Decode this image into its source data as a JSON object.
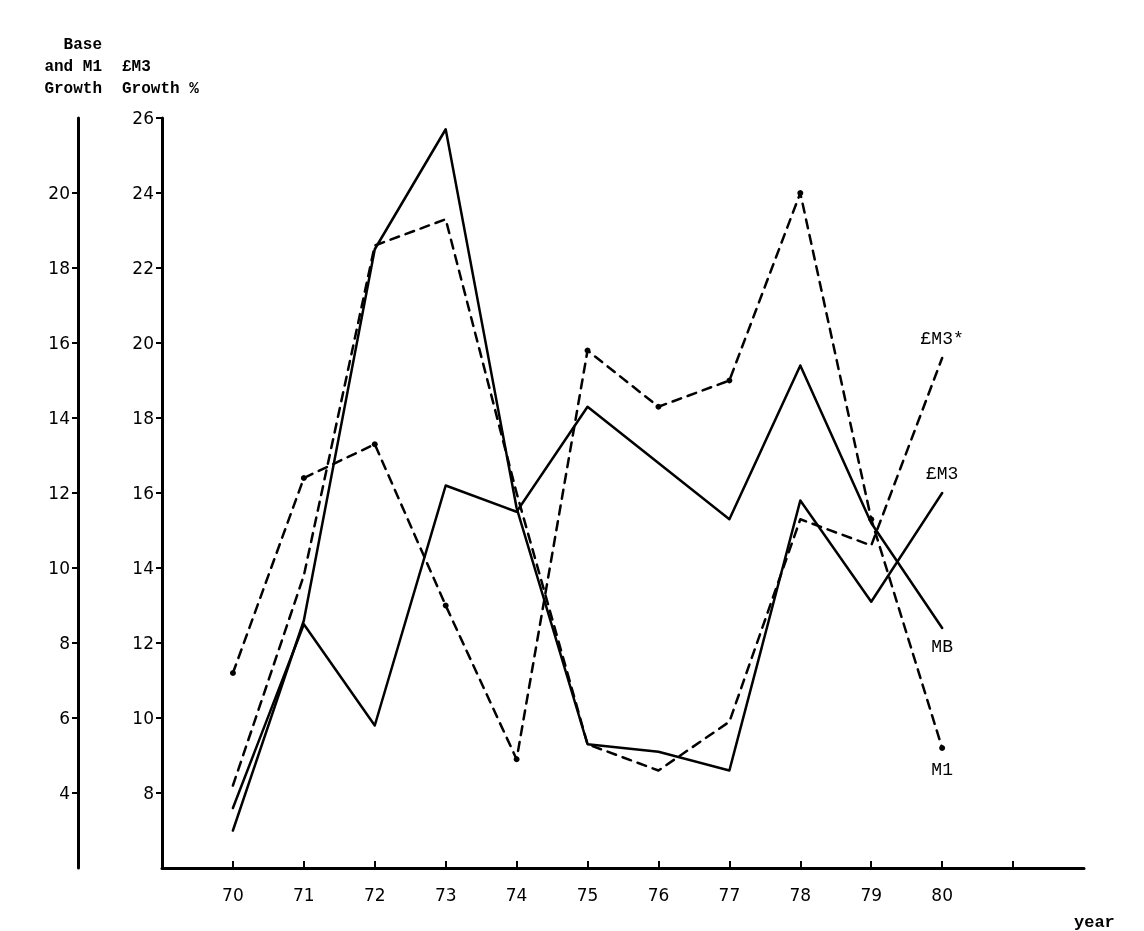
{
  "chart_data": {
    "type": "line",
    "ylabel": "£M3\nGrowth %",
    "y2label": "Base\nand M1\nGrowth",
    "xlabel": "year",
    "x": [
      70,
      71,
      72,
      73,
      74,
      75,
      76,
      77,
      78,
      79,
      80
    ],
    "xlim": [
      69,
      82
    ],
    "xticks": [
      70,
      71,
      72,
      73,
      74,
      75,
      76,
      77,
      78,
      79,
      80,
      {
        "value": 81,
        "label": null
      }
    ],
    "ylim": [
      6,
      26
    ],
    "yticks": [
      8,
      10,
      12,
      14,
      16,
      18,
      20,
      22,
      24,
      26
    ],
    "y2lim": [
      2,
      22
    ],
    "y2ticks": [
      4,
      6,
      8,
      10,
      12,
      14,
      16,
      18,
      20
    ],
    "grid": false,
    "legend": false,
    "series": [
      {
        "name": "£M3*",
        "color": "#000000",
        "axis": "y",
        "line_style": "dashed",
        "marker": "none",
        "values": [
          8.2,
          13.8,
          22.6,
          23.3,
          16.0,
          9.3,
          8.6,
          9.9,
          15.3,
          14.6,
          19.6
        ]
      },
      {
        "name": "£M3",
        "color": "#000000",
        "axis": "y",
        "line_style": "solid",
        "marker": "none",
        "values": [
          7.0,
          12.6,
          22.5,
          25.7,
          15.6,
          9.3,
          9.1,
          8.6,
          15.8,
          13.1,
          16.0
        ]
      },
      {
        "name": "MB",
        "color": "#000000",
        "axis": "y2",
        "line_style": "solid",
        "marker": "none",
        "values": [
          3.6,
          8.5,
          5.8,
          12.2,
          11.5,
          14.3,
          12.8,
          11.3,
          15.4,
          11.2,
          8.4
        ]
      },
      {
        "name": "M1",
        "color": "#000000",
        "axis": "y2",
        "line_style": "dashed",
        "marker": "circle",
        "values": [
          7.2,
          12.4,
          13.3,
          9.0,
          4.9,
          15.8,
          14.3,
          15.0,
          20.0,
          11.3,
          5.2
        ]
      }
    ]
  }
}
